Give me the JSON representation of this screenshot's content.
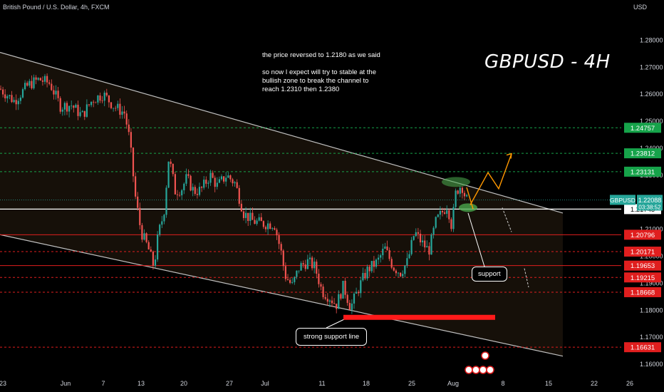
{
  "header": {
    "symbol_title": "British Pound / U.S. Dollar, 4h, FXCM",
    "currency": "USD"
  },
  "annotations": {
    "big_title": "GBPUSD - 4H",
    "note_line1": "the price reversed to 1.2180 as we said",
    "note_line2": "so now I expect will try to stable at the\nbullish zone to break the channel to\nreach 1.2310 then 1.2380",
    "support_callout": "support",
    "strong_support_callout": "strong support line"
  },
  "colors": {
    "background": "#000000",
    "candle_up": "#26a69a",
    "candle_down": "#ef5350",
    "green_level": "#16a34a",
    "red_level": "#e01e1e",
    "channel_fill": "#1a130b",
    "zone_highlight": "#4caf50",
    "projection": "#ff9800",
    "current_tag": "#26a69a"
  },
  "chart_data": {
    "type": "candlestick",
    "symbol": "GBPUSD",
    "timeframe": "4h",
    "ylim": [
      1.155,
      1.2875
    ],
    "y_ticks": [
      1.16,
      1.17,
      1.18,
      1.19,
      1.2,
      1.21,
      1.22,
      1.23,
      1.24,
      1.25,
      1.26,
      1.27,
      1.28
    ],
    "y_tick_labels": [
      "1.16000",
      "1.17000",
      "1.18000",
      "1.19000",
      "1.20000",
      "1.21000",
      "1.22000",
      "1.23000",
      "1.24000",
      "1.25000",
      "1.26000",
      "1.27000",
      "1.28000"
    ],
    "x_ticks": [
      "23",
      "Jun",
      "7",
      "13",
      "20",
      "27",
      "Jul",
      "11",
      "18",
      "25",
      "Aug",
      "8",
      "15",
      "22",
      "26"
    ],
    "price_path": [
      [
        0,
        1.262
      ],
      [
        20,
        1.2575
      ],
      [
        40,
        1.2635
      ],
      [
        55,
        1.2655
      ],
      [
        70,
        1.264
      ],
      [
        85,
        1.2555
      ],
      [
        100,
        1.256
      ],
      [
        115,
        1.252
      ],
      [
        130,
        1.258
      ],
      [
        145,
        1.26
      ],
      [
        160,
        1.2555
      ],
      [
        175,
        1.253
      ],
      [
        182,
        1.243
      ],
      [
        190,
        1.222
      ],
      [
        198,
        1.209
      ],
      [
        208,
        1.203
      ],
      [
        216,
        1.196
      ],
      [
        222,
        1.208
      ],
      [
        230,
        1.216
      ],
      [
        237,
        1.237
      ],
      [
        246,
        1.224
      ],
      [
        255,
        1.225
      ],
      [
        262,
        1.229
      ],
      [
        272,
        1.224
      ],
      [
        282,
        1.2245
      ],
      [
        295,
        1.23
      ],
      [
        305,
        1.226
      ],
      [
        318,
        1.23
      ],
      [
        330,
        1.227
      ],
      [
        342,
        1.216
      ],
      [
        355,
        1.213
      ],
      [
        370,
        1.212
      ],
      [
        385,
        1.212
      ],
      [
        395,
        1.201
      ],
      [
        400,
        1.193
      ],
      [
        410,
        1.189
      ],
      [
        420,
        1.196
      ],
      [
        432,
        1.198
      ],
      [
        442,
        1.196
      ],
      [
        452,
        1.187
      ],
      [
        462,
        1.185
      ],
      [
        472,
        1.182
      ],
      [
        482,
        1.189
      ],
      [
        492,
        1.181
      ],
      [
        500,
        1.186
      ],
      [
        508,
        1.191
      ],
      [
        516,
        1.195
      ],
      [
        530,
        1.198
      ],
      [
        540,
        1.203
      ],
      [
        552,
        1.196
      ],
      [
        562,
        1.194
      ],
      [
        572,
        1.198
      ],
      [
        582,
        1.209
      ],
      [
        592,
        1.205
      ],
      [
        602,
        1.202
      ],
      [
        612,
        1.213
      ],
      [
        620,
        1.216
      ],
      [
        628,
        1.219
      ],
      [
        634,
        1.211
      ],
      [
        640,
        1.224
      ],
      [
        648,
        1.2265
      ],
      [
        654,
        1.221
      ],
      [
        656,
        1.2209
      ]
    ],
    "channel": {
      "upper": [
        [
          0,
          1.2755
        ],
        [
          790,
          1.216
        ]
      ],
      "lower": [
        [
          0,
          1.208
        ],
        [
          790,
          1.163
        ]
      ]
    },
    "levels": [
      {
        "value": 1.24757,
        "label": "1.24757",
        "kind": "green"
      },
      {
        "value": 1.23812,
        "label": "1.23812",
        "kind": "green"
      },
      {
        "value": 1.23131,
        "label": "1.23131",
        "kind": "green"
      },
      {
        "value": 1.21745,
        "label": "1.21745",
        "kind": "white"
      },
      {
        "value": 1.20796,
        "label": "1.20796",
        "kind": "red"
      },
      {
        "value": 1.20171,
        "label": "1.20171",
        "kind": "red"
      },
      {
        "value": 1.19653,
        "label": "1.19653",
        "kind": "red"
      },
      {
        "value": 1.19215,
        "label": "1.19215",
        "kind": "red"
      },
      {
        "value": 1.18668,
        "label": "1.18668",
        "kind": "red"
      },
      {
        "value": 1.16631,
        "label": "1.16631",
        "kind": "red"
      }
    ],
    "current_price": {
      "symbol": "GBPUSD",
      "value": 1.22088,
      "label": "1.22088",
      "countdown": "03:38:52"
    },
    "strong_support": 1.1775,
    "projection_bullish": [
      [
        660,
        1.219
      ],
      [
        685,
        1.231
      ],
      [
        700,
        1.225
      ],
      [
        718,
        1.238
      ]
    ],
    "projection_bearish": [
      [
        705,
        1.218
      ],
      [
        718,
        1.209
      ]
    ]
  }
}
